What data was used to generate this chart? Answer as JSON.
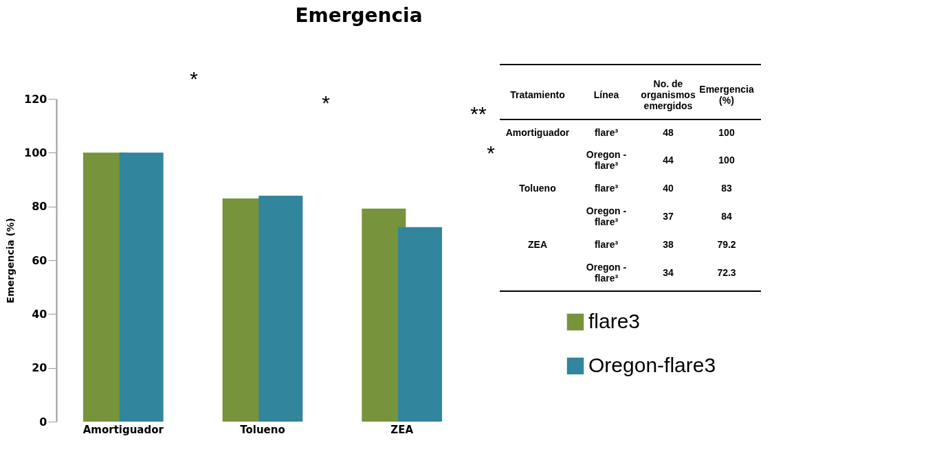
{
  "chart_data": {
    "type": "bar",
    "title": "Emergencia",
    "ylabel": "Emergencia (%)",
    "categories": [
      "Amortiguador",
      "Tolueno",
      "ZEA"
    ],
    "series": [
      {
        "name": "flare3",
        "color": "#77933c",
        "values": [
          100,
          83,
          79.2
        ]
      },
      {
        "name": "Oregon-flare3",
        "color": "#31859c",
        "values": [
          100,
          84,
          72.3
        ]
      }
    ],
    "ylim": [
      0,
      120
    ],
    "yticks": [
      0,
      20,
      40,
      60,
      80,
      100,
      120
    ],
    "grid": false,
    "legend": "bottom right",
    "annotations": [
      "*",
      "*",
      "**",
      "*",
      "Tratamiento",
      "Línea",
      "No. de organismos emergidos",
      "Emergencia (%)",
      "flare³",
      "Oregon - flare³",
      "flare³",
      "Oregon - flare³",
      "flare³",
      "Oregon - flare³",
      "48",
      "44",
      "40",
      "37",
      "38",
      "34",
      "100",
      "100",
      "83",
      "84",
      "79.2",
      "72.3"
    ]
  }
}
